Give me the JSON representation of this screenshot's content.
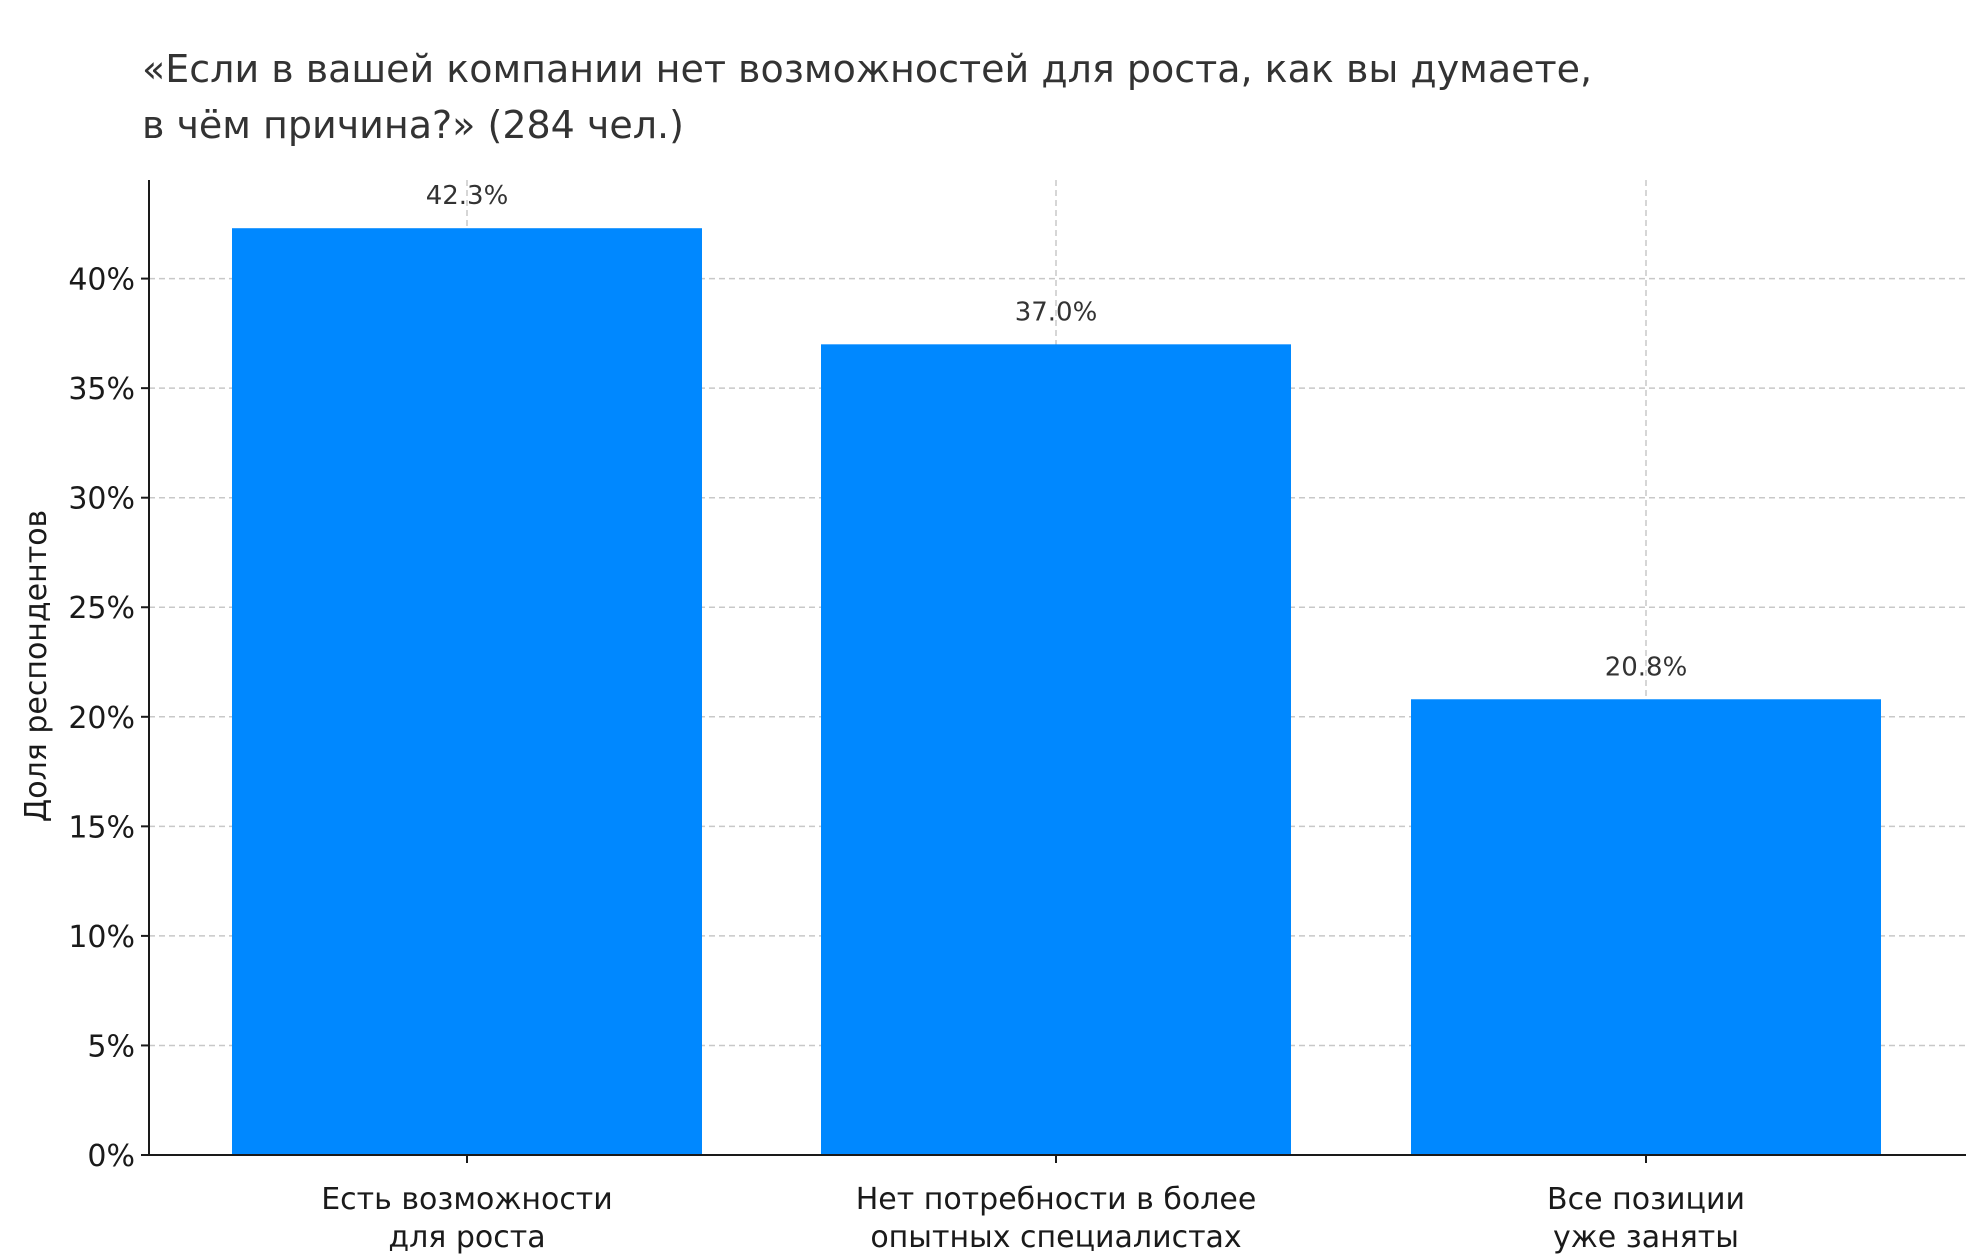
{
  "chart_data": {
    "type": "bar",
    "title_lines": [
      "«Если в вашей компании нет возможностей для роста, как вы думаете,",
      "в чём причина?» (284 чел.)"
    ],
    "ylabel": "Доля респондентов",
    "categories": [
      [
        "Есть возможности",
        "для роста"
      ],
      [
        "Нет потребности в более",
        "опытных специалистах"
      ],
      [
        "Все позиции",
        "уже заняты"
      ]
    ],
    "values": [
      42.3,
      37.0,
      20.8
    ],
    "data_labels": [
      "42.3%",
      "37.0%",
      "20.8%"
    ],
    "ylim": [
      0,
      44.5
    ],
    "yticks": [
      0,
      5,
      10,
      15,
      20,
      25,
      30,
      35,
      40
    ],
    "ytick_labels": [
      "0%",
      "5%",
      "10%",
      "15%",
      "20%",
      "25%",
      "30%",
      "35%",
      "40%"
    ],
    "bar_color": "#0088ff",
    "grid": true
  }
}
